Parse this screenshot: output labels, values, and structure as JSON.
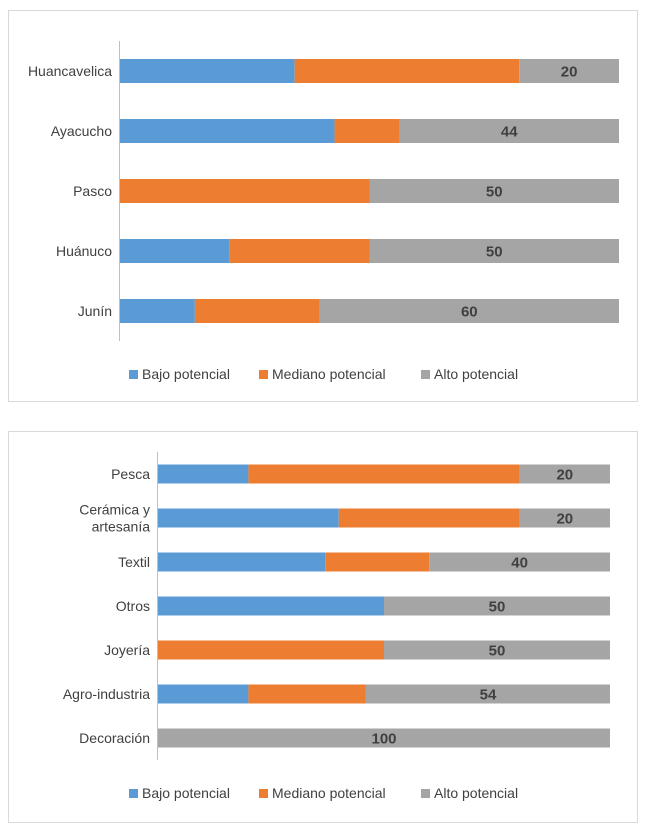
{
  "chart_data": [
    {
      "type": "bar",
      "orientation": "horizontal",
      "stacked": "percent",
      "categories": [
        "Huancavelica",
        "Ayacucho",
        "Pasco",
        "Huánuco",
        "Junín"
      ],
      "series": [
        {
          "name": "Bajo potencial",
          "color": "#5b9bd5",
          "values": [
            35,
            43,
            0,
            22,
            15
          ]
        },
        {
          "name": "Mediano potencial",
          "color": "#ed7d31",
          "values": [
            45,
            13,
            50,
            28,
            25
          ]
        },
        {
          "name": "Alto potencial",
          "color": "#a5a5a5",
          "values": [
            20,
            44,
            50,
            50,
            60
          ]
        }
      ],
      "data_labels": {
        "series": "Alto potencial",
        "values": [
          "20",
          "44",
          "50",
          "50",
          "60"
        ]
      },
      "title": "",
      "xlabel": "",
      "ylabel": "",
      "xlim": [
        0,
        100
      ],
      "grid": false,
      "legend": "bottom"
    },
    {
      "type": "bar",
      "orientation": "horizontal",
      "stacked": "percent",
      "categories": [
        "Pesca",
        "Cerámica y artesanía",
        "Textil",
        "Otros",
        "Joyería",
        "Agro-industria",
        "Decoración"
      ],
      "category_lines": [
        [
          "Pesca"
        ],
        [
          "Cerámica y",
          "artesanía"
        ],
        [
          "Textil"
        ],
        [
          "Otros"
        ],
        [
          "Joyería"
        ],
        [
          "Agro-industria"
        ],
        [
          "Decoración"
        ]
      ],
      "series": [
        {
          "name": "Bajo potencial",
          "color": "#5b9bd5",
          "values": [
            20,
            40,
            37,
            50,
            0,
            20,
            0
          ]
        },
        {
          "name": "Mediano potencial",
          "color": "#ed7d31",
          "values": [
            60,
            40,
            23,
            0,
            50,
            26,
            0
          ]
        },
        {
          "name": "Alto potencial",
          "color": "#a5a5a5",
          "values": [
            20,
            20,
            40,
            50,
            50,
            54,
            100
          ]
        }
      ],
      "data_labels": {
        "series": "Alto potencial",
        "values": [
          "20",
          "20",
          "40",
          "50",
          "50",
          "54",
          "100"
        ]
      },
      "title": "",
      "xlabel": "",
      "ylabel": "",
      "xlim": [
        0,
        100
      ],
      "grid": false,
      "legend": "bottom"
    }
  ]
}
